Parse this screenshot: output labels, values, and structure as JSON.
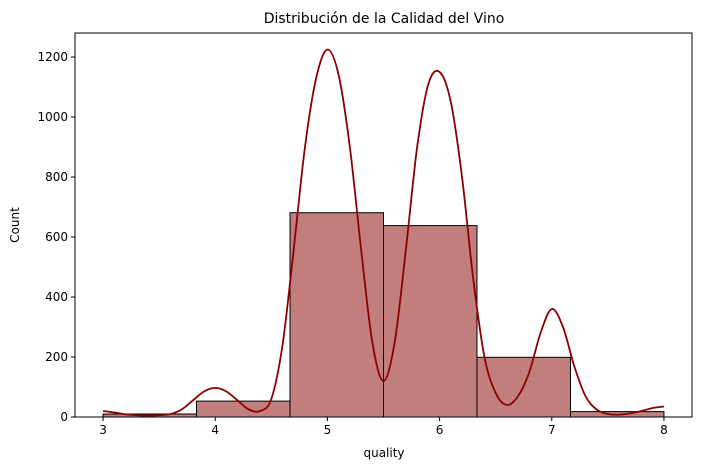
{
  "chart_data": {
    "type": "bar",
    "title": "Distribución de la Calidad del Vino",
    "xlabel": "quality",
    "ylabel": "Count",
    "xlim": [
      2.75,
      8.25
    ],
    "ylim": [
      0,
      1280
    ],
    "x_ticks": [
      3,
      4,
      5,
      6,
      7,
      8
    ],
    "y_ticks": [
      0,
      200,
      400,
      600,
      800,
      1000,
      1200
    ],
    "bin_edges": [
      3.0,
      3.8333,
      4.6667,
      5.5,
      6.3333,
      7.1667,
      8.0
    ],
    "counts": [
      10,
      53,
      681,
      638,
      199,
      18
    ],
    "kde": {
      "x": [
        3.0,
        3.1,
        3.2,
        3.3,
        3.4,
        3.5,
        3.6,
        3.7,
        3.8,
        3.9,
        4.0,
        4.1,
        4.2,
        4.3,
        4.4,
        4.5,
        4.6,
        4.7,
        4.8,
        4.9,
        5.0,
        5.1,
        5.2,
        5.3,
        5.4,
        5.5,
        5.6,
        5.7,
        5.8,
        5.9,
        6.0,
        6.1,
        6.2,
        6.3,
        6.4,
        6.5,
        6.6,
        6.7,
        6.8,
        6.9,
        7.0,
        7.1,
        7.2,
        7.3,
        7.4,
        7.5,
        7.6,
        7.7,
        7.8,
        7.9,
        8.0
      ],
      "y": [
        20,
        15,
        9,
        6,
        5,
        6,
        10,
        25,
        55,
        85,
        97,
        85,
        55,
        25,
        20,
        60,
        240,
        560,
        900,
        1130,
        1225,
        1140,
        900,
        560,
        250,
        120,
        250,
        560,
        900,
        1110,
        1150,
        1050,
        800,
        460,
        200,
        80,
        40,
        70,
        150,
        280,
        360,
        300,
        170,
        70,
        25,
        10,
        8,
        12,
        20,
        30,
        35
      ]
    },
    "colors": {
      "bar_fill": "#c27e7c",
      "bar_edge": "#000000",
      "kde_line": "#8b0000"
    },
    "grid": false,
    "legend": "none"
  }
}
